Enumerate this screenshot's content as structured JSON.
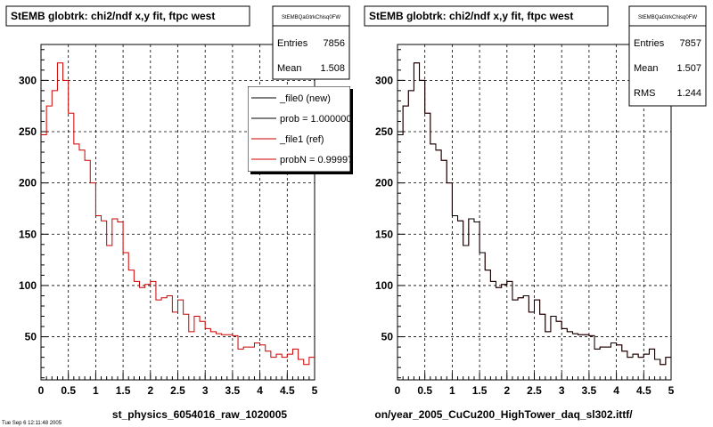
{
  "chart_data": [
    {
      "type": "line",
      "title": "StEMB globtrk: chi2/ndf x,y fit, ftpc west",
      "xlabel": "st_physics_6054016_raw_1020005",
      "ylabel": "",
      "xlim": [
        0,
        5
      ],
      "ylim": [
        8,
        335
      ],
      "xticks": [
        "0",
        "0.5",
        "1",
        "1.5",
        "2",
        "2.5",
        "3",
        "3.5",
        "4",
        "4.5",
        "5"
      ],
      "yticks": [
        "50",
        "100",
        "150",
        "200",
        "250",
        "300"
      ],
      "grid": true,
      "stats": {
        "name": "StEMBQaGtrkChisq0FW",
        "rows": [
          {
            "label": "Entries",
            "value": "7856"
          },
          {
            "label": "Mean",
            "value": "1.508"
          }
        ]
      },
      "legend": {
        "placement": "top-right",
        "entries": [
          {
            "label": "_file0 (new)",
            "color": "#000000"
          },
          {
            "label": "prob = 1.000000",
            "color": "#000000"
          },
          {
            "label": "_file1 (ref)",
            "color": "#cc0000"
          },
          {
            "label": "probN = 0.999975",
            "color": "#cc0000"
          }
        ]
      },
      "bin_width": 0.1,
      "x": [
        0.0,
        0.1,
        0.2,
        0.3,
        0.4,
        0.5,
        0.6,
        0.7,
        0.8,
        0.9,
        1.0,
        1.1,
        1.2,
        1.3,
        1.4,
        1.5,
        1.6,
        1.7,
        1.8,
        1.9,
        2.0,
        2.1,
        2.2,
        2.3,
        2.4,
        2.5,
        2.6,
        2.7,
        2.8,
        2.9,
        3.0,
        3.1,
        3.2,
        3.3,
        3.4,
        3.5,
        3.6,
        3.7,
        3.8,
        3.9,
        4.0,
        4.1,
        4.2,
        4.3,
        4.4,
        4.5,
        4.6,
        4.7,
        4.8,
        4.9
      ],
      "series": [
        {
          "name": "_file1 (ref)",
          "color": "#cc0000",
          "values": [
            247,
            275,
            290,
            317,
            300,
            268,
            238,
            232,
            222,
            200,
            168,
            163,
            139,
            165,
            162,
            132,
            115,
            104,
            98,
            101,
            104,
            86,
            88,
            90,
            74,
            86,
            72,
            55,
            70,
            65,
            58,
            55,
            53,
            52,
            52,
            51,
            38,
            40,
            40,
            44,
            42,
            36,
            30,
            33,
            30,
            33,
            38,
            28,
            23,
            30
          ]
        }
      ]
    },
    {
      "type": "line",
      "title": "StEMB globtrk: chi2/ndf x,y fit, ftpc west",
      "xlabel": "on/year_2005_CuCu200_HighTower_daq_sl302.ittf/",
      "ylabel": "",
      "xlim": [
        0,
        5
      ],
      "ylim": [
        8,
        335
      ],
      "xticks": [
        "0",
        "0.5",
        "1",
        "1.5",
        "2",
        "2.5",
        "3",
        "3.5",
        "4",
        "4.5",
        "5"
      ],
      "yticks": [
        "50",
        "100",
        "150",
        "200",
        "250",
        "300"
      ],
      "grid": true,
      "stats": {
        "name": "StEMBQaGtrkChisq0FW",
        "rows": [
          {
            "label": "Entries",
            "value": "7857"
          },
          {
            "label": "Mean",
            "value": "1.507"
          },
          {
            "label": "RMS",
            "value": "1.244"
          }
        ]
      },
      "bin_width": 0.1,
      "x": [
        0.0,
        0.1,
        0.2,
        0.3,
        0.4,
        0.5,
        0.6,
        0.7,
        0.8,
        0.9,
        1.0,
        1.1,
        1.2,
        1.3,
        1.4,
        1.5,
        1.6,
        1.7,
        1.8,
        1.9,
        2.0,
        2.1,
        2.2,
        2.3,
        2.4,
        2.5,
        2.6,
        2.7,
        2.8,
        2.9,
        3.0,
        3.1,
        3.2,
        3.3,
        3.4,
        3.5,
        3.6,
        3.7,
        3.8,
        3.9,
        4.0,
        4.1,
        4.2,
        4.3,
        4.4,
        4.5,
        4.6,
        4.7,
        4.8,
        4.9
      ],
      "series": [
        {
          "name": "_file1 (ref)",
          "color": "#cc0000",
          "values": [
            247,
            275,
            290,
            317,
            300,
            268,
            238,
            232,
            222,
            200,
            168,
            163,
            139,
            165,
            162,
            132,
            115,
            104,
            98,
            101,
            104,
            86,
            88,
            90,
            74,
            86,
            72,
            55,
            70,
            65,
            58,
            55,
            53,
            52,
            52,
            51,
            38,
            40,
            40,
            44,
            42,
            36,
            30,
            33,
            30,
            33,
            38,
            28,
            23,
            30
          ]
        },
        {
          "name": "_file0 (new)",
          "color": "#000000",
          "values": [
            247,
            275,
            290,
            317,
            300,
            268,
            238,
            232,
            222,
            200,
            168,
            163,
            139,
            165,
            162,
            132,
            115,
            104,
            98,
            101,
            104,
            86,
            88,
            90,
            74,
            86,
            72,
            55,
            70,
            65,
            58,
            55,
            53,
            52,
            52,
            51,
            38,
            40,
            40,
            44,
            42,
            36,
            30,
            33,
            30,
            33,
            38,
            28,
            23,
            30
          ]
        }
      ]
    }
  ],
  "footer_text": "Tue Sep  6 12:11:48 2005"
}
